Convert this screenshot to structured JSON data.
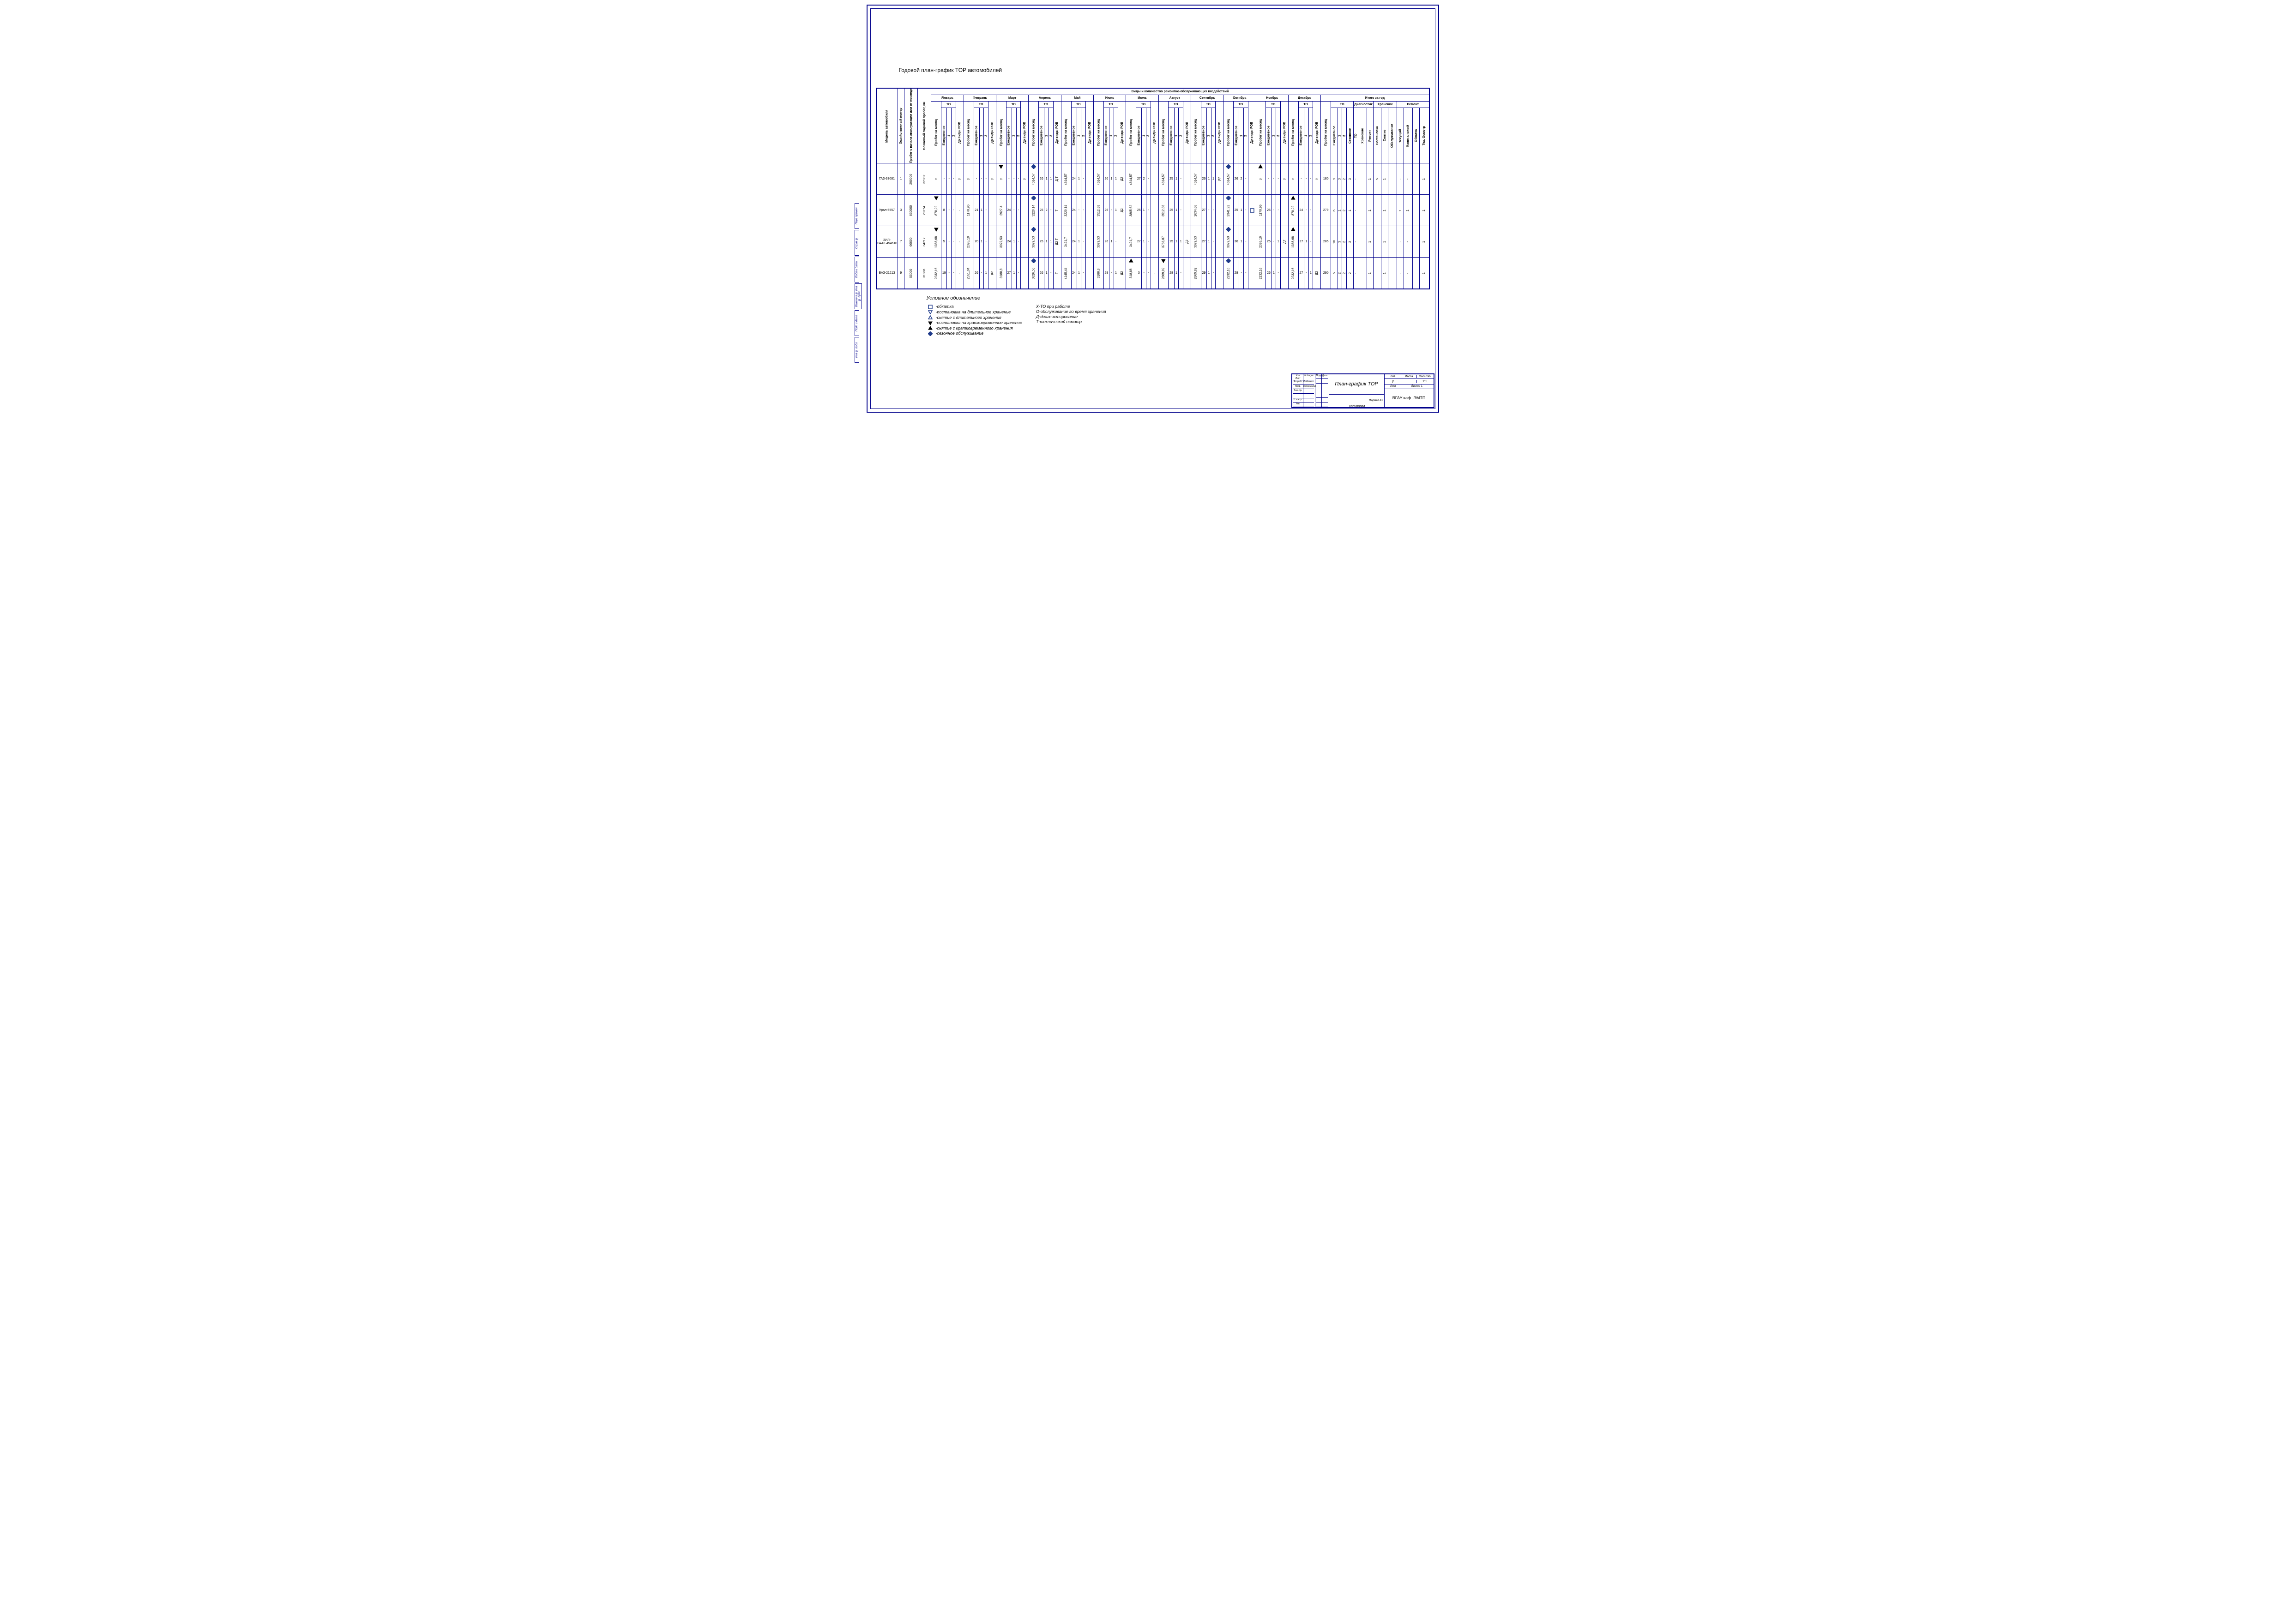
{
  "title": "Годовой план-график ТОР автомобилей",
  "colors": {
    "frame": "#00008b",
    "text": "#000000",
    "accent_blue": "#1e3a8a"
  },
  "header": {
    "top_label": "Виды и количество ремонтно-обслуживающих воздействий",
    "fixed_cols": [
      "Модель автомобиля",
      "Хозяйственный номер",
      "Пробег с начала эксплуатации или от последнего кап. Ремонта, тыс. км",
      "Плановый годовой пробег, км"
    ],
    "months": [
      "Январь",
      "Февраль",
      "Март",
      "Апрель",
      "Май",
      "Июнь",
      "Июль",
      "Август",
      "Сентябрь",
      "Октябрь",
      "Ноябрь",
      "Декабрь"
    ],
    "to_label": "ТО",
    "month_cols": [
      "Пробег на месяц",
      "Ежедневное",
      "1",
      "2",
      "Др виды РОВ"
    ],
    "year_label": "Итого за год",
    "year_groups": [
      "ТО",
      "Диагностик",
      "Хранение",
      "Ремонт"
    ],
    "year_cols": [
      "Пробег на месяц",
      "Ежедневное",
      "1",
      "2",
      "Сезонное",
      "ТО",
      "Хранение",
      "Ремонт",
      "Постановка",
      "Снятие",
      "Обслуживание",
      "Текущий",
      "Капитальный",
      "Обкатка",
      "Тех. Осмотр"
    ]
  },
  "rows": [
    {
      "model": "ГАЗ-33081",
      "num": "1",
      "probeg_start": "290000",
      "plan_god": "32302",
      "months": [
        {
          "pm": "0",
          "e": "-",
          "c1": "-",
          "c2": "-",
          "d": "0",
          "sym": null
        },
        {
          "pm": "0",
          "e": "-",
          "c1": "-",
          "c2": "-",
          "d": "0",
          "sym": null
        },
        {
          "pm": "0",
          "e": "-",
          "c1": "-",
          "c2": "-",
          "d": "0",
          "sym": "tri-up-f"
        },
        {
          "pm": "4614,57",
          "e": "26",
          "c1": "1",
          "c2": "1",
          "d": "Д Т",
          "sym": "dia-f"
        },
        {
          "pm": "4614,57",
          "e": "24",
          "c1": "1",
          "c2": "-",
          "d": "",
          "sym": null
        },
        {
          "pm": "4614,57",
          "e": "26",
          "c1": "1",
          "c2": "1",
          "d": "Д2",
          "sym": null
        },
        {
          "pm": "4614,57",
          "e": "27",
          "c1": "2",
          "c2": "-",
          "d": "",
          "sym": null
        },
        {
          "pm": "4614,57",
          "e": "25",
          "c1": "1",
          "c2": "-",
          "d": "",
          "sym": null
        },
        {
          "pm": "4614,57",
          "e": "26",
          "c1": "1",
          "c2": "1",
          "d": "Д2",
          "sym": null
        },
        {
          "pm": "4614,57",
          "e": "26",
          "c1": "2",
          "c2": "-",
          "d": "",
          "sym": "dia-f"
        },
        {
          "pm": "0",
          "e": "-",
          "c1": "-",
          "c2": "-",
          "d": "0",
          "sym": "tri-dn-f"
        },
        {
          "pm": "0",
          "e": "-",
          "c1": "-",
          "c2": "-",
          "d": "0",
          "sym": null
        }
      ],
      "year": [
        "180",
        "9",
        "3",
        "2",
        "3",
        "-",
        "",
        "1",
        "5",
        "1",
        "",
        "-",
        "-",
        "",
        "1"
      ]
    },
    {
      "model": "Урал-5557",
      "num": "3",
      "probeg_start": "650000",
      "plan_god": "29274",
      "months": [
        {
          "pm": "878,22",
          "e": "8",
          "c1": "-",
          "c2": "-",
          "d": "-",
          "sym": "tri-up-f"
        },
        {
          "pm": "1170,96",
          "e": "21",
          "c1": "1",
          "c2": "-",
          "d": "",
          "sym": null
        },
        {
          "pm": "2927,4",
          "e": "24",
          "c1": "-",
          "c2": "-",
          "d": "",
          "sym": null
        },
        {
          "pm": "3220,14",
          "e": "25",
          "c1": "2",
          "c2": "-",
          "d": "Т",
          "sym": "dia-f"
        },
        {
          "pm": "3220,14",
          "e": "24",
          "c1": "-",
          "c2": "-",
          "d": "",
          "sym": null
        },
        {
          "pm": "3512,88",
          "e": "26",
          "c1": "-",
          "c2": "1",
          "d": "Д2",
          "sym": null
        },
        {
          "pm": "3805,62",
          "e": "25",
          "c1": "1",
          "c2": "-",
          "d": "",
          "sym": null
        },
        {
          "pm": "3512,88",
          "e": "25",
          "c1": "1",
          "c2": "-",
          "d": "",
          "sym": null
        },
        {
          "pm": "2634,66",
          "e": "27",
          "c1": "-",
          "c2": "-",
          "d": "",
          "sym": null
        },
        {
          "pm": "2341,92",
          "e": "25",
          "c1": "1",
          "c2": "-",
          "d": "□",
          "sym": "dia-f"
        },
        {
          "pm": "1170,96",
          "e": "25",
          "c1": "-",
          "c2": "-",
          "d": "",
          "sym": null
        },
        {
          "pm": "878,22",
          "e": "24",
          "c1": "-",
          "c2": "-",
          "d": "",
          "sym": "tri-dn-f"
        }
      ],
      "year": [
        "279",
        "6",
        "1",
        "2",
        "1",
        "-",
        "",
        "1",
        "",
        "1",
        "",
        "1",
        "1",
        "",
        "1"
      ]
    },
    {
      "model": "ЗИЛ-СААЗ-454610",
      "num": "7",
      "probeg_start": "66000",
      "plan_god": "34217",
      "months": [
        {
          "pm": "1368,68",
          "e": "5",
          "c1": "-",
          "c2": "-",
          "d": "-",
          "sym": "tri-up-f"
        },
        {
          "pm": "2395,19",
          "e": "20",
          "c1": "1",
          "c2": "-",
          "d": "",
          "sym": null
        },
        {
          "pm": "3079,53",
          "e": "24",
          "c1": "1",
          "c2": "-",
          "d": "",
          "sym": null
        },
        {
          "pm": "3079,53",
          "e": "25",
          "c1": "1",
          "c2": "1",
          "d": "Д2 Т",
          "sym": "dia-f"
        },
        {
          "pm": "3421,7",
          "e": "24",
          "c1": "1",
          "c2": "-",
          "d": "",
          "sym": null
        },
        {
          "pm": "3079,53",
          "e": "26",
          "c1": "1",
          "c2": "-",
          "d": "",
          "sym": null
        },
        {
          "pm": "3421,7",
          "e": "27",
          "c1": "1",
          "c2": "-",
          "d": "",
          "sym": null
        },
        {
          "pm": "3763,87",
          "e": "25",
          "c1": "1",
          "c2": "1",
          "d": "Д2",
          "sym": null
        },
        {
          "pm": "3079,53",
          "e": "27",
          "c1": "1",
          "c2": "-",
          "d": "",
          "sym": null
        },
        {
          "pm": "3079,53",
          "e": "30",
          "c1": "1",
          "c2": "-",
          "d": "",
          "sym": "dia-f"
        },
        {
          "pm": "2395,19",
          "e": "25",
          "c1": "-",
          "c2": "1",
          "d": "Д2",
          "sym": null
        },
        {
          "pm": "1368,68",
          "e": "27",
          "c1": "1",
          "c2": "-",
          "d": "",
          "sym": "tri-dn-f"
        }
      ],
      "year": [
        "285",
        "10",
        "3",
        "2",
        "3",
        "-",
        "",
        "1",
        "",
        "1",
        "",
        "-",
        "-",
        "",
        "1"
      ]
    },
    {
      "model": "ВАЗ-21213",
      "num": "9",
      "probeg_start": "55000",
      "plan_god": "31888",
      "months": [
        {
          "pm": "2232,16",
          "e": "19",
          "c1": "-",
          "c2": "-",
          "d": "-",
          "sym": null
        },
        {
          "pm": "2551,04",
          "e": "26",
          "c1": "-",
          "c2": "1",
          "d": "Д2",
          "sym": null
        },
        {
          "pm": "3188,8",
          "e": "27",
          "c1": "1",
          "c2": "-",
          "d": "",
          "sym": null
        },
        {
          "pm": "3826,56",
          "e": "26",
          "c1": "1",
          "c2": "-",
          "d": "Т",
          "sym": "dia-f"
        },
        {
          "pm": "4145,44",
          "e": "24",
          "c1": "1",
          "c2": "-",
          "d": "",
          "sym": null
        },
        {
          "pm": "3188,8",
          "e": "29",
          "c1": "-",
          "c2": "1",
          "d": "Д2",
          "sym": null
        },
        {
          "pm": "318,88",
          "e": "3",
          "c1": "-",
          "c2": "-",
          "d": "-",
          "sym": "tri-dn-f"
        },
        {
          "pm": "2869,92",
          "e": "28",
          "c1": "1",
          "c2": "-",
          "d": "",
          "sym": "tri-up-f"
        },
        {
          "pm": "2869,92",
          "e": "29",
          "c1": "1",
          "c2": "-",
          "d": "",
          "sym": null
        },
        {
          "pm": "2232,16",
          "e": "28",
          "c1": "-",
          "c2": "-",
          "d": "",
          "sym": "dia-f"
        },
        {
          "pm": "2232,16",
          "e": "26",
          "c1": "1",
          "c2": "-",
          "d": "",
          "sym": null
        },
        {
          "pm": "2232,16",
          "e": "27",
          "c1": "-",
          "c2": "1",
          "d": "Д2",
          "sym": null
        }
      ],
      "year": [
        "290",
        "6",
        "2",
        "2",
        "2",
        "-",
        "",
        "1",
        "",
        "1",
        "",
        "-",
        "-",
        "",
        "1"
      ]
    }
  ],
  "legend": {
    "title": "Условное обозначение",
    "col1": [
      {
        "sym": "sq-o",
        "text": "-обкатка"
      },
      {
        "sym": "tri-dn-o",
        "text": "-постановка на длительное хранение"
      },
      {
        "sym": "tri-up-o",
        "text": "-снятие с длительного хранения"
      },
      {
        "sym": "tri-dn-f",
        "text": "-постановка на кратковременное хранение"
      },
      {
        "sym": "tri-up-f",
        "text": "-снятие с кратковременного хранения"
      },
      {
        "sym": "dia-f",
        "text": "-сезонное обслуживание"
      }
    ],
    "col2": [
      "Х-ТО при работе",
      "О-обслуживание во время хранения",
      "Д-диагностирование",
      "Т-технический осмотр"
    ]
  },
  "side_tabs": [
    "Перв примен",
    "Справ №",
    "Подп и дата",
    "Взам инв № Инв № дубл",
    "Подп и дата",
    "Инв № подл"
  ],
  "stamp": {
    "roles": [
      "Изм Лист",
      "Разраб.",
      "Пров.",
      "Т.контр.",
      "",
      "Н.контр.",
      "Утв."
    ],
    "names": [
      "№ докум",
      "Побленко",
      "Колесников",
      "",
      "",
      "",
      ""
    ],
    "cols2": [
      "Подп",
      "Дата"
    ],
    "title": "План-график ТОР",
    "org": "ВГАУ каф. ЭМТП",
    "format": "Формат   А1",
    "lit": "Лит.",
    "massa": "Масса",
    "masht": "Масштаб",
    "litval": "у",
    "mval": "1:1",
    "list": "Лист",
    "listov": "Листов   1",
    "kopi": "Копировал"
  },
  "side_note": "выполняется при необходимости"
}
